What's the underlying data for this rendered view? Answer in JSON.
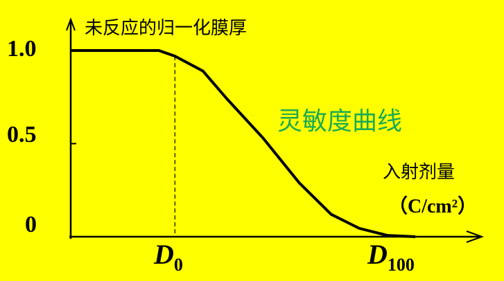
{
  "chart_data": {
    "type": "line",
    "ylabel": "未反应的归一化膜厚",
    "xlabel": "入射剂量",
    "xunit": "（C/cm²）",
    "annotation": "灵敏度曲线",
    "annotation_color": "#1aaa55",
    "background_color": "#ffff00",
    "ylim": [
      0,
      1.0
    ],
    "yticks": [
      "1.0",
      "0.5",
      "0"
    ],
    "xtick_labels": [
      {
        "label": "D",
        "sub": "0",
        "x": 26
      },
      {
        "label": "D",
        "sub": "100",
        "x": 76
      }
    ],
    "xlim": [
      0,
      100
    ],
    "series": [
      {
        "x": [
          0,
          22,
          26,
          33,
          39,
          48,
          57,
          65,
          72,
          79,
          86
        ],
        "y": [
          1,
          1,
          0.97,
          0.89,
          0.74,
          0.53,
          0.29,
          0.12,
          0.045,
          0.007,
          0
        ]
      }
    ],
    "grid": false
  }
}
